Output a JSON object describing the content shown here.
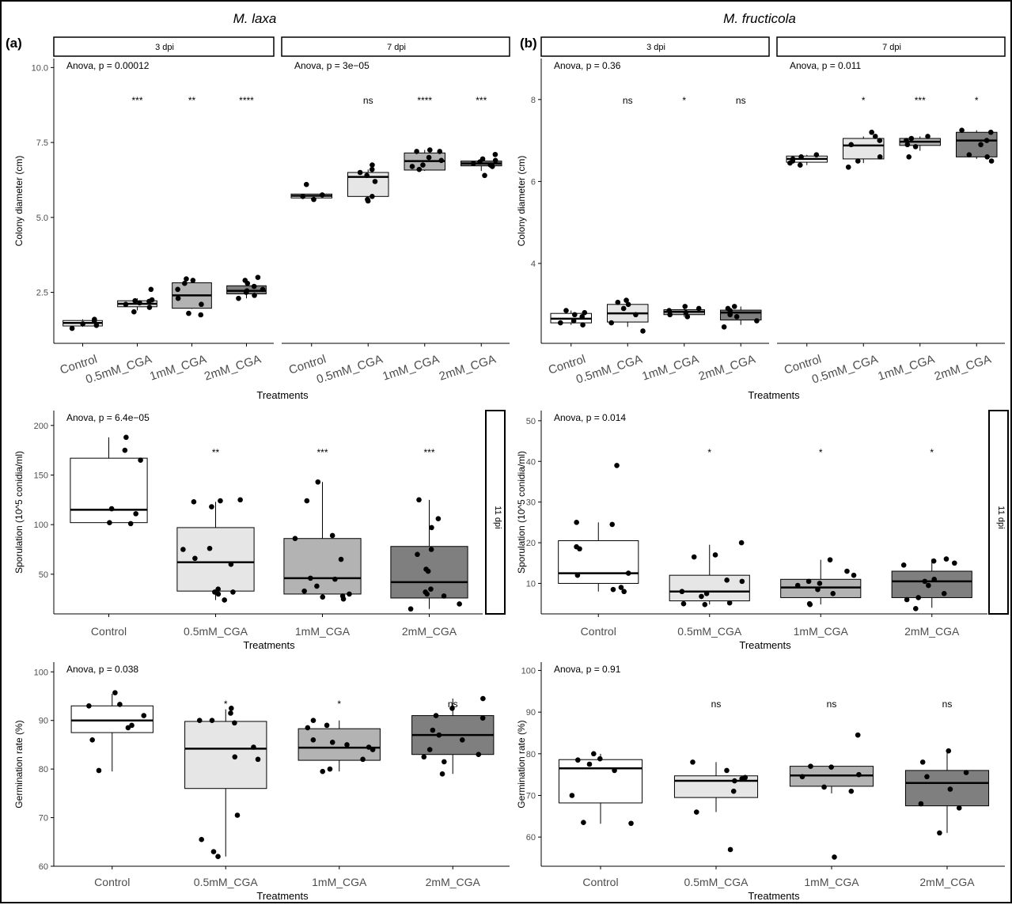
{
  "figure": {
    "title_left": "M. laxa",
    "title_right": "M. fructicola",
    "tag_left": "(a)",
    "tag_right": "(b)"
  },
  "chart_data": [
    {
      "type": "box",
      "id": "laxa-diameter",
      "ylabel": "Colony diameter (cm)",
      "xlabel": "Treatments",
      "ylim": [
        0.8,
        10.3
      ],
      "yticks": [
        2.5,
        5.0,
        7.5,
        10.0
      ],
      "ytick_labels": [
        "2.5",
        "5.0",
        "7.5",
        "10.0"
      ],
      "categories": [
        "Control",
        "0.5mM_CGA",
        "1mM_CGA",
        "2mM_CGA"
      ],
      "facets": [
        {
          "strip": "3 dpi",
          "anova": "Anova, p = 0.00012",
          "signif": [
            "",
            "***",
            "**",
            "****"
          ],
          "boxes": [
            {
              "min": 1.35,
              "q1": 1.38,
              "median": 1.48,
              "q3": 1.56,
              "max": 1.6
            },
            {
              "min": 1.9,
              "q1": 2.02,
              "median": 2.12,
              "q3": 2.22,
              "max": 2.3
            },
            {
              "min": 1.95,
              "q1": 1.97,
              "median": 2.4,
              "q3": 2.82,
              "max": 2.97
            },
            {
              "min": 2.3,
              "q1": 2.45,
              "median": 2.55,
              "q3": 2.72,
              "max": 2.95
            }
          ],
          "points": [
            [
              1.3,
              1.45,
              1.55,
              1.6,
              1.4
            ],
            [
              1.85,
              2.0,
              2.1,
              2.15,
              2.2,
              2.22,
              2.6,
              2.25
            ],
            [
              1.75,
              1.8,
              2.1,
              2.3,
              2.6,
              2.8,
              2.9,
              2.95
            ],
            [
              2.3,
              2.4,
              2.5,
              2.55,
              2.6,
              2.7,
              2.8,
              2.9,
              3.0
            ]
          ]
        },
        {
          "strip": "7 dpi",
          "anova": "Anova, p = 3e−05",
          "signif": [
            "",
            "ns",
            "****",
            "***"
          ],
          "boxes": [
            {
              "min": 5.6,
              "q1": 5.65,
              "median": 5.72,
              "q3": 5.78,
              "max": 5.78
            },
            {
              "min": 5.55,
              "q1": 5.7,
              "median": 6.35,
              "q3": 6.5,
              "max": 6.6
            },
            {
              "min": 6.55,
              "q1": 6.58,
              "median": 6.88,
              "q3": 7.15,
              "max": 7.25
            },
            {
              "min": 6.55,
              "q1": 6.72,
              "median": 6.8,
              "q3": 6.88,
              "max": 7.0
            }
          ],
          "points": [
            [
              5.6,
              5.7,
              5.75,
              6.1
            ],
            [
              5.55,
              5.6,
              5.7,
              6.2,
              6.4,
              6.5,
              6.6,
              6.75
            ],
            [
              6.6,
              6.7,
              6.75,
              6.9,
              7.0,
              7.2,
              7.2,
              7.25
            ],
            [
              6.4,
              6.7,
              6.75,
              6.8,
              6.85,
              6.9,
              6.95,
              7.1
            ]
          ]
        }
      ]
    },
    {
      "type": "box",
      "id": "fructicola-diameter",
      "ylabel": "Colony diameter (cm)",
      "xlabel": "Treatments",
      "ylim": [
        2.05,
        9.0
      ],
      "yticks": [
        4,
        6,
        8
      ],
      "ytick_labels": [
        "4",
        "6",
        "8"
      ],
      "categories": [
        "Control",
        "0.5mM_CGA",
        "1mM_CGA",
        "2mM_CGA"
      ],
      "facets": [
        {
          "strip": "3 dpi",
          "anova": "Anova, p = 0.36",
          "signif": [
            "",
            "ns",
            "*",
            "ns"
          ],
          "boxes": [
            {
              "min": 2.5,
              "q1": 2.55,
              "median": 2.65,
              "q3": 2.78,
              "max": 2.85
            },
            {
              "min": 2.45,
              "q1": 2.57,
              "median": 2.78,
              "q3": 3.0,
              "max": 3.1
            },
            {
              "min": 2.7,
              "q1": 2.75,
              "median": 2.82,
              "q3": 2.87,
              "max": 2.95
            },
            {
              "min": 2.5,
              "q1": 2.62,
              "median": 2.8,
              "q3": 2.86,
              "max": 2.95
            }
          ],
          "points": [
            [
              2.5,
              2.55,
              2.6,
              2.7,
              2.75,
              2.8,
              2.85
            ],
            [
              2.35,
              2.55,
              2.75,
              2.9,
              3.0,
              3.05,
              3.1
            ],
            [
              2.7,
              2.75,
              2.8,
              2.85,
              2.9,
              2.95
            ],
            [
              2.45,
              2.6,
              2.7,
              2.75,
              2.85,
              2.9,
              2.95
            ]
          ]
        },
        {
          "strip": "7 dpi",
          "anova": "Anova, p = 0.011",
          "signif": [
            "",
            "*",
            "***",
            "*"
          ],
          "boxes": [
            {
              "min": 6.4,
              "q1": 6.47,
              "median": 6.55,
              "q3": 6.62,
              "max": 6.65
            },
            {
              "min": 6.45,
              "q1": 6.55,
              "median": 6.88,
              "q3": 7.05,
              "max": 7.1
            },
            {
              "min": 6.75,
              "q1": 6.88,
              "median": 6.97,
              "q3": 7.05,
              "max": 7.1
            },
            {
              "min": 6.55,
              "q1": 6.6,
              "median": 7.0,
              "q3": 7.2,
              "max": 7.25
            }
          ],
          "points": [
            [
              6.4,
              6.45,
              6.5,
              6.55,
              6.6,
              6.65
            ],
            [
              6.35,
              6.5,
              6.6,
              6.9,
              7.0,
              7.1,
              7.2
            ],
            [
              6.6,
              6.85,
              6.9,
              7.0,
              7.05,
              7.1
            ],
            [
              6.5,
              6.6,
              6.65,
              6.9,
              7.0,
              7.2,
              7.25
            ]
          ]
        }
      ]
    },
    {
      "type": "box",
      "id": "laxa-sporulation",
      "ylabel": "Sporulation (10^5 conidia/ml)",
      "xlabel": "Treatments",
      "strip": "11 dpi",
      "anova": "Anova, p = 6.4e−05",
      "ylim": [
        10,
        215
      ],
      "yticks": [
        50,
        100,
        150,
        200
      ],
      "ytick_labels": [
        "50",
        "100",
        "150",
        "200"
      ],
      "categories": [
        "Control",
        "0.5mM_CGA",
        "1mM_CGA",
        "2mM_CGA"
      ],
      "signif": [
        "",
        "**",
        "***",
        "***"
      ],
      "boxes": [
        {
          "min": 101,
          "q1": 102,
          "median": 115,
          "q3": 167,
          "max": 188
        },
        {
          "min": 24,
          "q1": 33,
          "median": 62,
          "q3": 97,
          "max": 123
        },
        {
          "min": 25,
          "q1": 30,
          "median": 46,
          "q3": 86,
          "max": 143
        },
        {
          "min": 15,
          "q1": 26,
          "median": 42,
          "q3": 78,
          "max": 125
        }
      ],
      "points": [
        [
          101,
          102,
          111,
          116,
          165,
          175,
          188
        ],
        [
          24,
          30,
          32,
          32,
          35,
          60,
          66,
          75,
          76,
          118,
          123,
          124,
          125
        ],
        [
          25,
          27,
          28,
          30,
          33,
          38,
          45,
          46,
          65,
          86,
          89,
          124,
          143
        ],
        [
          15,
          20,
          28,
          30,
          32,
          35,
          53,
          55,
          70,
          75,
          97,
          106,
          125
        ]
      ]
    },
    {
      "type": "box",
      "id": "fructicola-sporulation",
      "ylabel": "Sporulation (10^5 conidia/ml)",
      "xlabel": "Treatments",
      "strip": "11 dpi",
      "anova": "Anova, p = 0.014",
      "ylim": [
        2.5,
        52.5
      ],
      "yticks": [
        10,
        20,
        30,
        40,
        50
      ],
      "ytick_labels": [
        "10",
        "20",
        "30",
        "40",
        "50"
      ],
      "categories": [
        "Control",
        "0.5mM_CGA",
        "1mM_CGA",
        "2mM_CGA"
      ],
      "signif": [
        "",
        "*",
        "*",
        "*"
      ],
      "boxes": [
        {
          "min": 8,
          "q1": 10,
          "median": 12.5,
          "q3": 20.5,
          "max": 25
        },
        {
          "min": 4.8,
          "q1": 5.7,
          "median": 8,
          "q3": 12,
          "max": 19.5
        },
        {
          "min": 4.8,
          "q1": 6.5,
          "median": 9,
          "q3": 11,
          "max": 15.8
        },
        {
          "min": 4,
          "q1": 6.5,
          "median": 10.5,
          "q3": 13,
          "max": 16
        }
      ],
      "points": [
        [
          8,
          8.5,
          9,
          12,
          12.5,
          18.5,
          19,
          24.5,
          25,
          39
        ],
        [
          4.8,
          5,
          5.2,
          6.8,
          7.5,
          8,
          10.5,
          10.8,
          16.5,
          17,
          20
        ],
        [
          4.8,
          5,
          7.5,
          8.5,
          9.5,
          10,
          10.5,
          12,
          13,
          15.8
        ],
        [
          3.8,
          6,
          6.5,
          7.5,
          9.5,
          10.5,
          11,
          14.5,
          15,
          15.5,
          16
        ]
      ]
    },
    {
      "type": "box",
      "id": "laxa-germination",
      "ylabel": "Germination rate (%)",
      "xlabel": "Treatments",
      "anova": "Anova, p = 0.038",
      "ylim": [
        60,
        102
      ],
      "yticks": [
        60,
        70,
        80,
        90,
        100
      ],
      "ytick_labels": [
        "60",
        "70",
        "80",
        "90",
        "100"
      ],
      "categories": [
        "Control",
        "0.5mM_CGA",
        "1mM_CGA",
        "2mM_CGA"
      ],
      "signif": [
        "",
        "*",
        "*",
        "ns"
      ],
      "boxes": [
        {
          "min": 79.5,
          "q1": 87.5,
          "median": 90,
          "q3": 93,
          "max": 95.5
        },
        {
          "min": 62,
          "q1": 76,
          "median": 84.2,
          "q3": 89.8,
          "max": 92.3
        },
        {
          "min": 79.5,
          "q1": 81.8,
          "median": 84.4,
          "q3": 88.3,
          "max": 90
        },
        {
          "min": 79,
          "q1": 83,
          "median": 87,
          "q3": 91,
          "max": 94.5
        }
      ],
      "points": [
        [
          79.7,
          86,
          88.5,
          89,
          91,
          93,
          93.3,
          95.7
        ],
        [
          62,
          63,
          65.5,
          70.5,
          82,
          82.5,
          84.5,
          89.5,
          90,
          90,
          91.5,
          92.5
        ],
        [
          79.5,
          80,
          82,
          84,
          84.5,
          85,
          85.5,
          86,
          88.5,
          89,
          90
        ],
        [
          79,
          81.5,
          82.5,
          83,
          84,
          86,
          87,
          88,
          90.5,
          91,
          92.5,
          94.5
        ]
      ]
    },
    {
      "type": "box",
      "id": "fructicola-germination",
      "ylabel": "Germination rate (%)",
      "xlabel": "Treatments",
      "anova": "Anova, p = 0.91",
      "ylim": [
        53,
        102
      ],
      "yticks": [
        60,
        70,
        80,
        90,
        100
      ],
      "ytick_labels": [
        "60",
        "70",
        "80",
        "90",
        "100"
      ],
      "categories": [
        "Control",
        "0.5mM_CGA",
        "1mM_CGA",
        "2mM_CGA"
      ],
      "signif": [
        "",
        "ns",
        "ns",
        "ns"
      ],
      "boxes": [
        {
          "min": 63.2,
          "q1": 68.2,
          "median": 76.5,
          "q3": 78.6,
          "max": 80
        },
        {
          "min": 66,
          "q1": 69.5,
          "median": 73.5,
          "q3": 74.7,
          "max": 78
        },
        {
          "min": 70.5,
          "q1": 72.2,
          "median": 74.8,
          "q3": 77,
          "max": 77.2
        },
        {
          "min": 61,
          "q1": 67.5,
          "median": 73,
          "q3": 76,
          "max": 80.5
        }
      ],
      "points": [
        [
          63.3,
          63.5,
          70,
          76,
          77.5,
          78.5,
          78.8,
          80
        ],
        [
          57,
          66,
          71,
          73.5,
          74,
          74.3,
          76,
          78
        ],
        [
          55.2,
          71,
          72,
          74.5,
          75,
          76.8,
          77,
          84.5
        ],
        [
          61,
          67,
          68,
          71.5,
          74.5,
          75.5,
          78,
          80.7
        ]
      ]
    }
  ],
  "style": {
    "fills": [
      "#ffffff",
      "#e6e6e6",
      "#b3b3b3",
      "#7f7f7f"
    ],
    "axis_color": "#000000",
    "tick_label_color": "#4d4d4d",
    "point_color": "#000000"
  }
}
